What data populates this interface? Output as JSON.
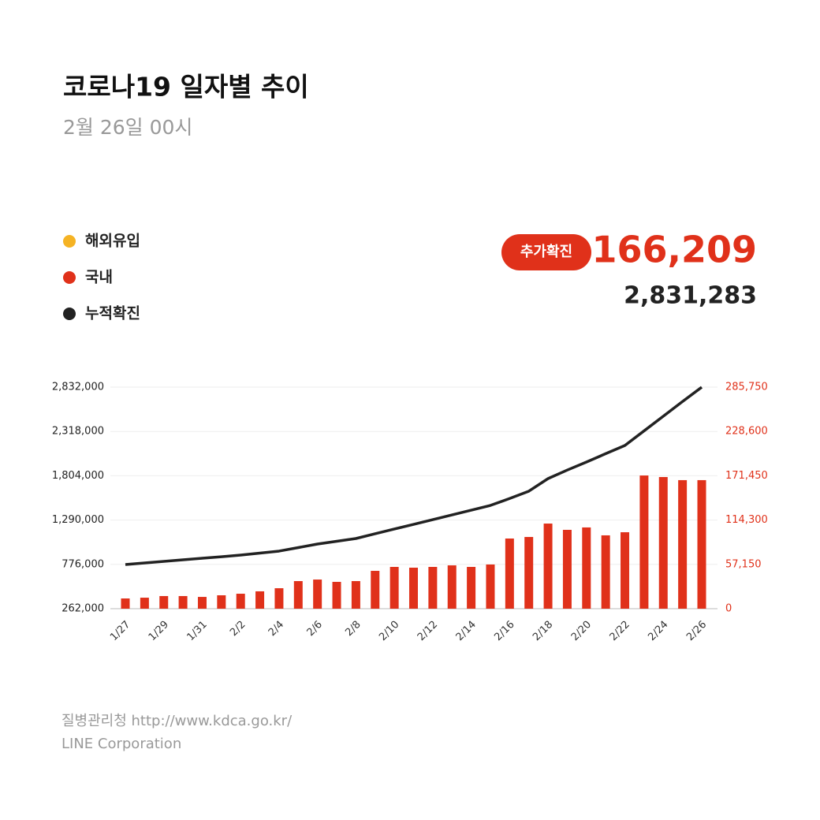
{
  "header": {
    "title": "코로나19 일자별 추이",
    "subtitle": "2월 26일 00시",
    "badge": "추가확진",
    "new_cases": "166,209",
    "total_cases": "2,831,283"
  },
  "footer": {
    "source": "질병관리청  http://www.kdca.go.kr/",
    "credit": "LINE Corporation"
  },
  "chart_data": {
    "type": "bar-line",
    "categories": [
      "1/27",
      null,
      "1/29",
      null,
      "1/31",
      null,
      "2/2",
      null,
      "2/4",
      null,
      "2/6",
      null,
      "2/8",
      null,
      "2/10",
      null,
      "2/12",
      null,
      "2/14",
      null,
      "2/16",
      null,
      "2/18",
      null,
      "2/20",
      null,
      "2/22",
      null,
      "2/24",
      null,
      "2/26"
    ],
    "other_legend": {
      "name": "해외유입",
      "color": "#f5b324"
    },
    "series": [
      {
        "name": "국내",
        "color": "#e0311a",
        "axis": "y2",
        "values": [
          13200,
          14200,
          16300,
          16300,
          15200,
          17300,
          19300,
          22400,
          26400,
          35600,
          37600,
          34600,
          35600,
          48800,
          53900,
          52900,
          53900,
          55900,
          53900,
          57000,
          90500,
          92500,
          109800,
          101700,
          104800,
          94600,
          98600,
          171800,
          169800,
          165800,
          165800
        ]
      },
      {
        "name": "누적확진",
        "color": "#222222",
        "values": [
          774000,
          792000,
          811000,
          829000,
          847000,
          865000,
          884000,
          907000,
          930000,
          971000,
          1012000,
          1044000,
          1076000,
          1131000,
          1186000,
          1240000,
          1295000,
          1350000,
          1405000,
          1460000,
          1540000,
          1625000,
          1771000,
          1870000,
          1963000,
          2060000,
          2155000,
          2325000,
          2495000,
          2665000,
          2831283
        ]
      }
    ],
    "ylim": [
      262000,
      2832000
    ],
    "yticks": [
      {
        "value": 262000,
        "label": "262,000"
      },
      {
        "value": 776000,
        "label": "776,000"
      },
      {
        "value": 1290000,
        "label": "1,290,000"
      },
      {
        "value": 1804000,
        "label": "1,804,000"
      },
      {
        "value": 2318000,
        "label": "2,318,000"
      },
      {
        "value": 2832000,
        "label": "2,832,000"
      }
    ],
    "y2lim": [
      0,
      285750
    ],
    "y2ticks": [
      0,
      {
        "value": 57150,
        "label": "57,150"
      },
      {
        "value": 114300,
        "label": "114,300"
      },
      {
        "value": 171450,
        "label": "171,450"
      },
      {
        "value": 228600,
        "label": "228,600"
      },
      {
        "value": 285750,
        "label": "285,750"
      }
    ],
    "grid": true
  }
}
